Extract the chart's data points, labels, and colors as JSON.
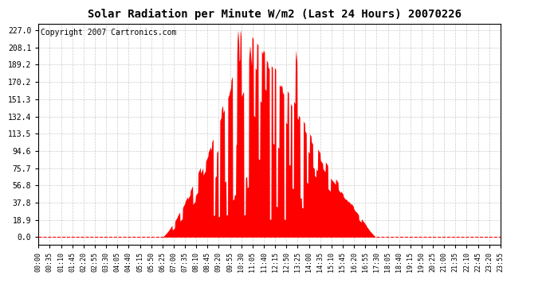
{
  "title": "Solar Radiation per Minute W/m2 (Last 24 Hours) 20070226",
  "copyright_text": "Copyright 2007 Cartronics.com",
  "bar_color": "#FF0000",
  "background_color": "#FFFFFF",
  "plot_bg_color": "#FFFFFF",
  "grid_color": "#C0C0C0",
  "dashed_line_color": "#FF0000",
  "yticks": [
    0.0,
    18.9,
    37.8,
    56.8,
    75.7,
    94.6,
    113.5,
    132.4,
    151.3,
    170.2,
    189.2,
    208.1,
    227.0
  ],
  "ymax": 234,
  "ymin": -8,
  "time_labels": [
    "00:00",
    "00:35",
    "01:10",
    "01:45",
    "02:20",
    "02:55",
    "03:30",
    "04:05",
    "04:40",
    "05:15",
    "05:50",
    "06:25",
    "07:00",
    "07:35",
    "08:10",
    "08:45",
    "09:20",
    "09:55",
    "10:30",
    "11:05",
    "11:40",
    "12:15",
    "12:50",
    "13:25",
    "14:00",
    "14:35",
    "15:10",
    "15:45",
    "16:20",
    "16:55",
    "17:30",
    "18:05",
    "18:40",
    "19:15",
    "19:50",
    "20:25",
    "21:00",
    "21:35",
    "22:10",
    "22:45",
    "23:20",
    "23:55"
  ],
  "sunrise_minute": 385,
  "sunset_minute": 1050,
  "peak_minute": 660,
  "peak_value": 227.0,
  "title_fontsize": 10,
  "copyright_fontsize": 7,
  "tick_fontsize": 7,
  "xtick_fontsize": 6
}
